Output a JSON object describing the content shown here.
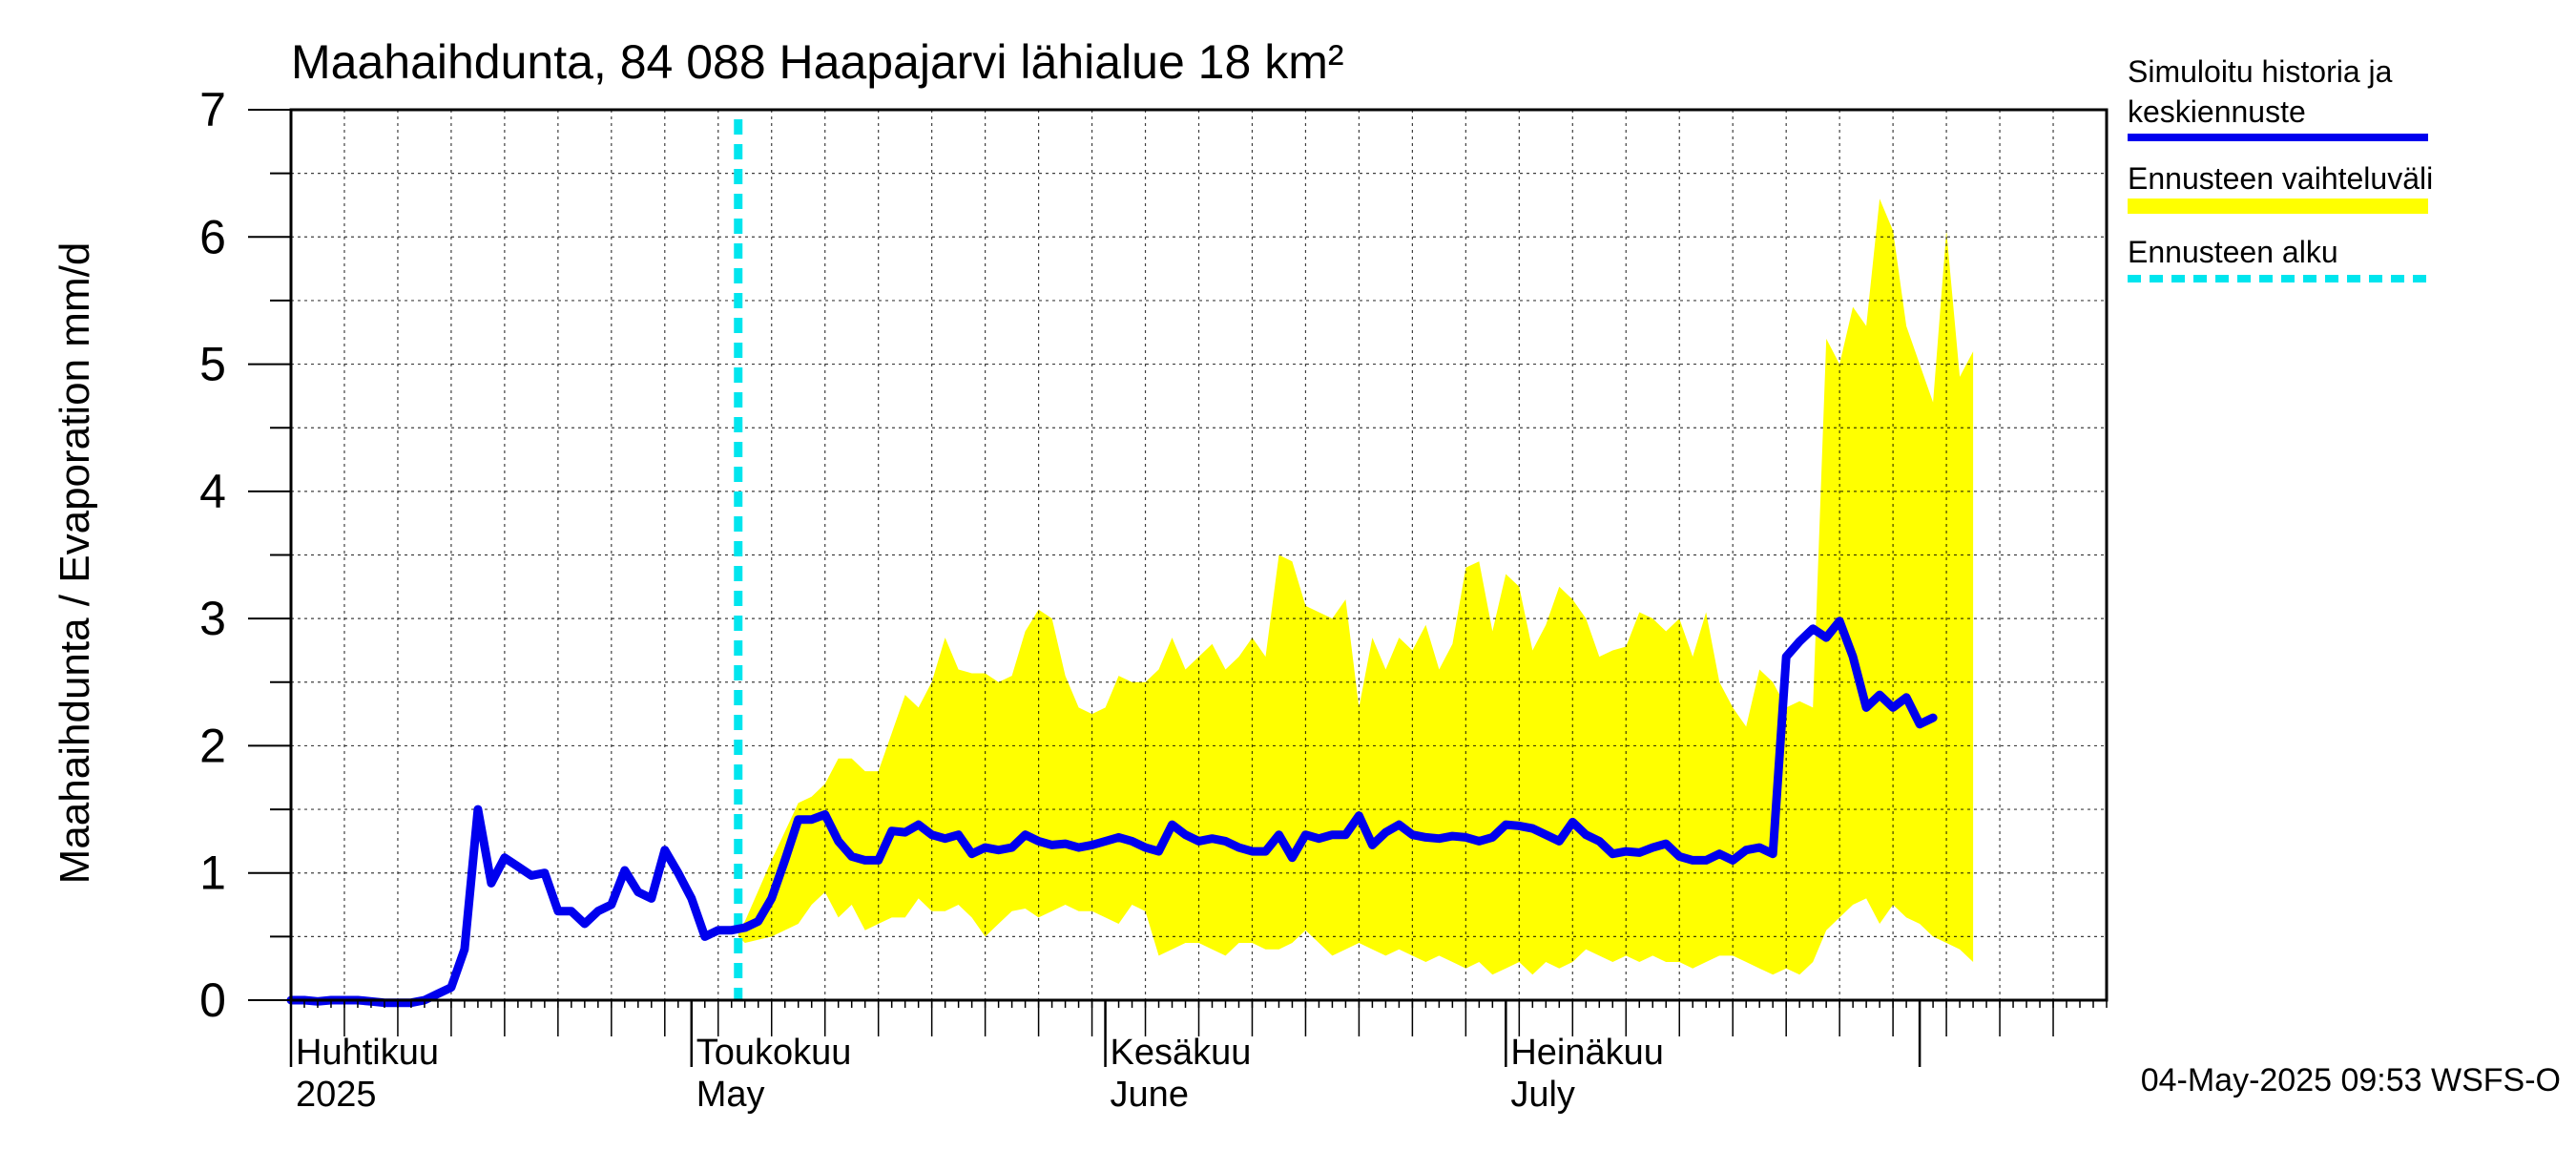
{
  "chart_data": {
    "type": "line",
    "title": "Maahaihdunta, 84 088 Haapajarvi lähialue 18 km²",
    "ylabel": "Maahaihdunta / Evaporation   mm/d",
    "ylim": [
      0,
      7
    ],
    "yticks": [
      "0",
      "1",
      "2",
      "3",
      "4",
      "5",
      "6",
      "7"
    ],
    "x_start_day": 0,
    "x_end_day": 136,
    "month_labels": [
      {
        "day": 0,
        "fi": "Huhtikuu",
        "en": "2025"
      },
      {
        "day": 30,
        "fi": "Toukokuu",
        "en": "May"
      },
      {
        "day": 61,
        "fi": "Kesäkuu",
        "en": "June"
      },
      {
        "day": 91,
        "fi": "Heinäkuu",
        "en": "July"
      }
    ],
    "month_ticks_day": [
      0,
      30,
      61,
      91,
      122
    ],
    "forecast_start_day": 33.5,
    "legend": [
      {
        "label": "Simuloitu historia ja",
        "label2": "keskiennuste",
        "color": "#0000ee",
        "style": "solid"
      },
      {
        "label": "Ennusteen vaihteluväli",
        "color": "#ffff00",
        "style": "band"
      },
      {
        "label": "Ennusteen alku",
        "color": "#00e5ee",
        "style": "dashed"
      }
    ],
    "timestamp": "04-May-2025 09:53 WSFS-O",
    "series_median": {
      "name": "Simuloitu historia ja keskiennuste",
      "color": "#0000ee",
      "points": [
        [
          0,
          0
        ],
        [
          1,
          0
        ],
        [
          2,
          -0.01
        ],
        [
          3,
          0
        ],
        [
          4,
          0
        ],
        [
          5,
          0
        ],
        [
          6,
          -0.01
        ],
        [
          7,
          -0.02
        ],
        [
          8,
          -0.02
        ],
        [
          9,
          -0.02
        ],
        [
          10,
          0
        ],
        [
          11,
          0.05
        ],
        [
          12,
          0.1
        ],
        [
          13,
          0.4
        ],
        [
          14,
          1.5
        ],
        [
          15,
          0.92
        ],
        [
          16,
          1.12
        ],
        [
          17,
          1.05
        ],
        [
          18,
          0.98
        ],
        [
          19,
          1.0
        ],
        [
          20,
          0.7
        ],
        [
          21,
          0.7
        ],
        [
          22,
          0.6
        ],
        [
          23,
          0.7
        ],
        [
          24,
          0.75
        ],
        [
          25,
          1.02
        ],
        [
          26,
          0.85
        ],
        [
          27,
          0.8
        ],
        [
          28,
          1.18
        ],
        [
          29,
          1.0
        ],
        [
          30,
          0.8
        ],
        [
          31,
          0.5
        ],
        [
          32,
          0.55
        ],
        [
          33,
          0.55
        ],
        [
          34,
          0.57
        ],
        [
          35,
          0.62
        ],
        [
          36,
          0.8
        ],
        [
          37,
          1.1
        ],
        [
          38,
          1.42
        ],
        [
          39,
          1.42
        ],
        [
          40,
          1.46
        ],
        [
          41,
          1.25
        ],
        [
          42,
          1.13
        ],
        [
          43,
          1.1
        ],
        [
          44,
          1.1
        ],
        [
          45,
          1.33
        ],
        [
          46,
          1.32
        ],
        [
          47,
          1.38
        ],
        [
          48,
          1.3
        ],
        [
          49,
          1.27
        ],
        [
          50,
          1.3
        ],
        [
          51,
          1.15
        ],
        [
          52,
          1.2
        ],
        [
          53,
          1.18
        ],
        [
          54,
          1.2
        ],
        [
          55,
          1.3
        ],
        [
          56,
          1.25
        ],
        [
          57,
          1.22
        ],
        [
          58,
          1.23
        ],
        [
          59,
          1.2
        ],
        [
          60,
          1.22
        ],
        [
          61,
          1.25
        ],
        [
          62,
          1.28
        ],
        [
          63,
          1.25
        ],
        [
          64,
          1.2
        ],
        [
          65,
          1.17
        ],
        [
          66,
          1.38
        ],
        [
          67,
          1.3
        ],
        [
          68,
          1.25
        ],
        [
          69,
          1.27
        ],
        [
          70,
          1.25
        ],
        [
          71,
          1.2
        ],
        [
          72,
          1.17
        ],
        [
          73,
          1.17
        ],
        [
          74,
          1.3
        ],
        [
          75,
          1.12
        ],
        [
          76,
          1.3
        ],
        [
          77,
          1.27
        ],
        [
          78,
          1.3
        ],
        [
          79,
          1.3
        ],
        [
          80,
          1.45
        ],
        [
          81,
          1.22
        ],
        [
          82,
          1.32
        ],
        [
          83,
          1.38
        ],
        [
          84,
          1.3
        ],
        [
          85,
          1.28
        ],
        [
          86,
          1.27
        ],
        [
          87,
          1.29
        ],
        [
          88,
          1.28
        ],
        [
          89,
          1.25
        ],
        [
          90,
          1.28
        ],
        [
          91,
          1.38
        ],
        [
          92,
          1.37
        ],
        [
          93,
          1.35
        ],
        [
          94,
          1.3
        ],
        [
          95,
          1.25
        ],
        [
          96,
          1.4
        ],
        [
          97,
          1.3
        ],
        [
          98,
          1.25
        ],
        [
          99,
          1.15
        ],
        [
          100,
          1.17
        ],
        [
          101,
          1.16
        ],
        [
          102,
          1.2
        ],
        [
          103,
          1.23
        ],
        [
          104,
          1.13
        ],
        [
          105,
          1.1
        ],
        [
          106,
          1.1
        ],
        [
          107,
          1.15
        ],
        [
          108,
          1.1
        ],
        [
          109,
          1.18
        ],
        [
          110,
          1.2
        ],
        [
          111,
          1.15
        ],
        [
          112,
          2.7
        ],
        [
          113,
          2.82
        ],
        [
          114,
          2.92
        ],
        [
          115,
          2.85
        ],
        [
          116,
          2.98
        ],
        [
          117,
          2.7
        ],
        [
          118,
          2.3
        ],
        [
          119,
          2.4
        ],
        [
          120,
          2.3
        ],
        [
          121,
          2.38
        ],
        [
          122,
          2.17
        ],
        [
          123,
          2.22
        ]
      ]
    },
    "band_upper": [
      [
        33.5,
        0.55
      ],
      [
        34,
        0.62
      ],
      [
        36,
        1.1
      ],
      [
        38,
        1.55
      ],
      [
        39,
        1.6
      ],
      [
        40,
        1.7
      ],
      [
        41,
        1.9
      ],
      [
        42,
        1.9
      ],
      [
        43,
        1.8
      ],
      [
        44,
        1.8
      ],
      [
        45,
        2.1
      ],
      [
        46,
        2.4
      ],
      [
        47,
        2.3
      ],
      [
        48,
        2.5
      ],
      [
        49,
        2.85
      ],
      [
        50,
        2.6
      ],
      [
        51,
        2.57
      ],
      [
        52,
        2.57
      ],
      [
        53,
        2.5
      ],
      [
        54,
        2.55
      ],
      [
        55,
        2.9
      ],
      [
        56,
        3.07
      ],
      [
        57,
        3.0
      ],
      [
        58,
        2.55
      ],
      [
        59,
        2.3
      ],
      [
        60,
        2.25
      ],
      [
        61,
        2.3
      ],
      [
        62,
        2.55
      ],
      [
        63,
        2.5
      ],
      [
        64,
        2.5
      ],
      [
        65,
        2.6
      ],
      [
        66,
        2.85
      ],
      [
        67,
        2.6
      ],
      [
        68,
        2.7
      ],
      [
        69,
        2.8
      ],
      [
        70,
        2.6
      ],
      [
        71,
        2.7
      ],
      [
        72,
        2.85
      ],
      [
        73,
        2.7
      ],
      [
        74,
        3.5
      ],
      [
        75,
        3.45
      ],
      [
        76,
        3.1
      ],
      [
        77,
        3.05
      ],
      [
        78,
        3.0
      ],
      [
        79,
        3.15
      ],
      [
        80,
        2.3
      ],
      [
        81,
        2.85
      ],
      [
        82,
        2.6
      ],
      [
        83,
        2.85
      ],
      [
        84,
        2.75
      ],
      [
        85,
        2.95
      ],
      [
        86,
        2.6
      ],
      [
        87,
        2.8
      ],
      [
        88,
        3.4
      ],
      [
        89,
        3.45
      ],
      [
        90,
        2.9
      ],
      [
        91,
        3.35
      ],
      [
        92,
        3.25
      ],
      [
        93,
        2.75
      ],
      [
        94,
        2.95
      ],
      [
        95,
        3.25
      ],
      [
        96,
        3.15
      ],
      [
        97,
        3.0
      ],
      [
        98,
        2.7
      ],
      [
        99,
        2.75
      ],
      [
        100,
        2.78
      ],
      [
        101,
        3.05
      ],
      [
        102,
        3.0
      ],
      [
        103,
        2.9
      ],
      [
        104,
        3.0
      ],
      [
        105,
        2.7
      ],
      [
        106,
        3.05
      ],
      [
        107,
        2.5
      ],
      [
        108,
        2.3
      ],
      [
        109,
        2.15
      ],
      [
        110,
        2.6
      ],
      [
        111,
        2.5
      ],
      [
        112,
        2.3
      ],
      [
        113,
        2.35
      ],
      [
        114,
        2.3
      ],
      [
        115,
        5.2
      ],
      [
        116,
        5.0
      ],
      [
        117,
        5.45
      ],
      [
        118,
        5.3
      ],
      [
        119,
        6.3
      ],
      [
        120,
        6.05
      ],
      [
        121,
        5.3
      ],
      [
        122,
        5.0
      ],
      [
        123,
        4.7
      ],
      [
        124,
        6.05
      ],
      [
        125,
        4.9
      ],
      [
        126,
        5.1
      ]
    ],
    "band_lower": [
      [
        33.5,
        0.5
      ],
      [
        34,
        0.45
      ],
      [
        36,
        0.5
      ],
      [
        38,
        0.6
      ],
      [
        39,
        0.75
      ],
      [
        40,
        0.85
      ],
      [
        41,
        0.65
      ],
      [
        42,
        0.75
      ],
      [
        43,
        0.55
      ],
      [
        44,
        0.6
      ],
      [
        45,
        0.65
      ],
      [
        46,
        0.65
      ],
      [
        47,
        0.8
      ],
      [
        48,
        0.7
      ],
      [
        49,
        0.7
      ],
      [
        50,
        0.75
      ],
      [
        51,
        0.65
      ],
      [
        52,
        0.5
      ],
      [
        53,
        0.6
      ],
      [
        54,
        0.7
      ],
      [
        55,
        0.72
      ],
      [
        56,
        0.65
      ],
      [
        57,
        0.7
      ],
      [
        58,
        0.75
      ],
      [
        59,
        0.7
      ],
      [
        60,
        0.7
      ],
      [
        61,
        0.65
      ],
      [
        62,
        0.6
      ],
      [
        63,
        0.75
      ],
      [
        64,
        0.7
      ],
      [
        65,
        0.35
      ],
      [
        66,
        0.4
      ],
      [
        67,
        0.45
      ],
      [
        68,
        0.45
      ],
      [
        69,
        0.4
      ],
      [
        70,
        0.35
      ],
      [
        71,
        0.45
      ],
      [
        72,
        0.45
      ],
      [
        73,
        0.4
      ],
      [
        74,
        0.4
      ],
      [
        75,
        0.45
      ],
      [
        76,
        0.55
      ],
      [
        77,
        0.45
      ],
      [
        78,
        0.35
      ],
      [
        79,
        0.4
      ],
      [
        80,
        0.45
      ],
      [
        81,
        0.4
      ],
      [
        82,
        0.35
      ],
      [
        83,
        0.4
      ],
      [
        84,
        0.35
      ],
      [
        85,
        0.3
      ],
      [
        86,
        0.35
      ],
      [
        87,
        0.3
      ],
      [
        88,
        0.25
      ],
      [
        89,
        0.3
      ],
      [
        90,
        0.2
      ],
      [
        91,
        0.25
      ],
      [
        92,
        0.3
      ],
      [
        93,
        0.2
      ],
      [
        94,
        0.3
      ],
      [
        95,
        0.25
      ],
      [
        96,
        0.3
      ],
      [
        97,
        0.4
      ],
      [
        98,
        0.35
      ],
      [
        99,
        0.3
      ],
      [
        100,
        0.35
      ],
      [
        101,
        0.3
      ],
      [
        102,
        0.35
      ],
      [
        103,
        0.3
      ],
      [
        104,
        0.3
      ],
      [
        105,
        0.25
      ],
      [
        106,
        0.3
      ],
      [
        107,
        0.35
      ],
      [
        108,
        0.35
      ],
      [
        109,
        0.3
      ],
      [
        110,
        0.25
      ],
      [
        111,
        0.2
      ],
      [
        112,
        0.25
      ],
      [
        113,
        0.2
      ],
      [
        114,
        0.3
      ],
      [
        115,
        0.55
      ],
      [
        116,
        0.65
      ],
      [
        117,
        0.75
      ],
      [
        118,
        0.8
      ],
      [
        119,
        0.6
      ],
      [
        120,
        0.75
      ],
      [
        121,
        0.65
      ],
      [
        122,
        0.6
      ],
      [
        123,
        0.5
      ],
      [
        124,
        0.45
      ],
      [
        125,
        0.4
      ],
      [
        126,
        0.3
      ]
    ]
  }
}
